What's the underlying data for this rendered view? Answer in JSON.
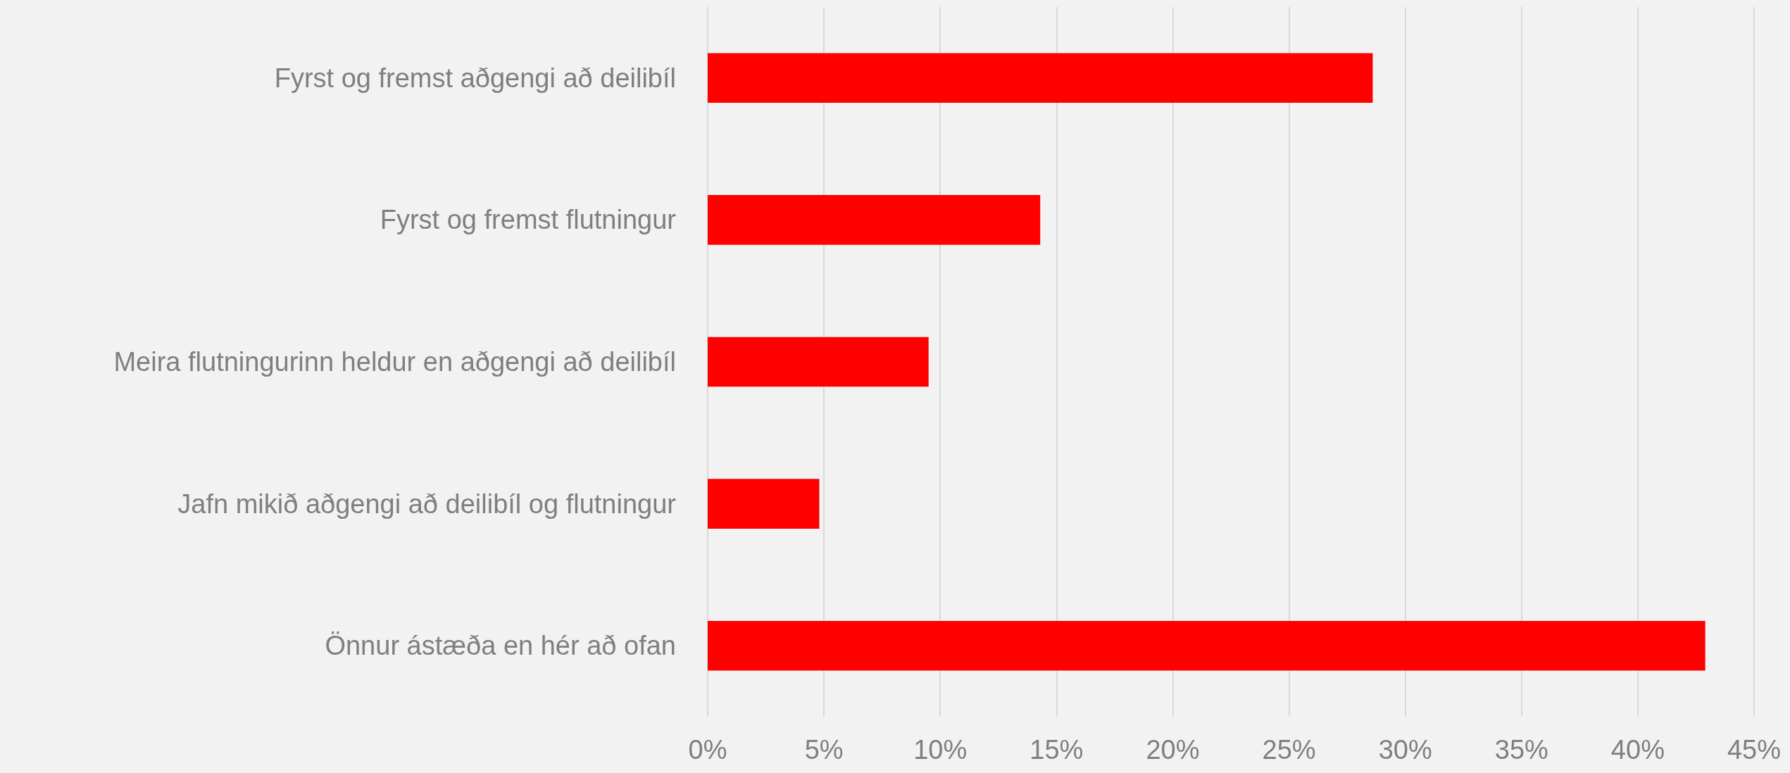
{
  "chart_data": {
    "type": "bar",
    "orientation": "horizontal",
    "categories": [
      "Fyrst og fremst aðgengi að deilibíl",
      "Fyrst og fremst flutningur",
      "Meira flutningurinn heldur en aðgengi að deilibíl",
      "Jafn mikið aðgengi að deilibíl og flutningur",
      "Önnur ástæða en hér að ofan"
    ],
    "values": [
      28.6,
      14.3,
      9.5,
      4.8,
      42.9
    ],
    "color": "#ff0000",
    "xlim": [
      0,
      45
    ],
    "xticks": [
      {
        "value": 0,
        "label": "0%"
      },
      {
        "value": 5,
        "label": "5%"
      },
      {
        "value": 10,
        "label": "10%"
      },
      {
        "value": 15,
        "label": "15%"
      },
      {
        "value": 20,
        "label": "20%"
      },
      {
        "value": 25,
        "label": "25%"
      },
      {
        "value": 30,
        "label": "30%"
      },
      {
        "value": 35,
        "label": "35%"
      },
      {
        "value": 40,
        "label": "40%"
      },
      {
        "value": 45,
        "label": "45%"
      }
    ],
    "grid": "x"
  }
}
